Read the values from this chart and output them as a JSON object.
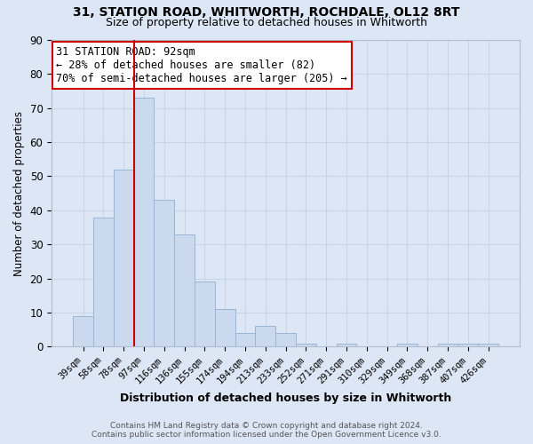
{
  "title1": "31, STATION ROAD, WHITWORTH, ROCHDALE, OL12 8RT",
  "title2": "Size of property relative to detached houses in Whitworth",
  "xlabel": "Distribution of detached houses by size in Whitworth",
  "ylabel": "Number of detached properties",
  "bar_values": [
    9,
    38,
    52,
    73,
    43,
    33,
    19,
    11,
    4,
    6,
    4,
    1,
    0,
    1,
    0,
    0,
    1,
    0,
    1,
    1,
    1
  ],
  "bar_labels": [
    "39sqm",
    "58sqm",
    "78sqm",
    "97sqm",
    "116sqm",
    "136sqm",
    "155sqm",
    "174sqm",
    "194sqm",
    "213sqm",
    "233sqm",
    "252sqm",
    "271sqm",
    "291sqm",
    "310sqm",
    "329sqm",
    "349sqm",
    "368sqm",
    "387sqm",
    "407sqm",
    "426sqm"
  ],
  "bar_color": "#cad9ee",
  "bar_edge_color": "#9ab5d5",
  "grid_color": "#c8d4e8",
  "vline_color": "#cc0000",
  "ylim_max": 90,
  "yticks": [
    0,
    10,
    20,
    30,
    40,
    50,
    60,
    70,
    80,
    90
  ],
  "annotation_line1": "31 STATION ROAD: 92sqm",
  "annotation_line2": "← 28% of detached houses are smaller (82)",
  "annotation_line3": "70% of semi-detached houses are larger (205) →",
  "annotation_box_color": "#ffffff",
  "annotation_box_edge": "#cc0000",
  "footer1": "Contains HM Land Registry data © Crown copyright and database right 2024.",
  "footer2": "Contains public sector information licensed under the Open Government Licence v3.0.",
  "background_color": "#dde6f5"
}
